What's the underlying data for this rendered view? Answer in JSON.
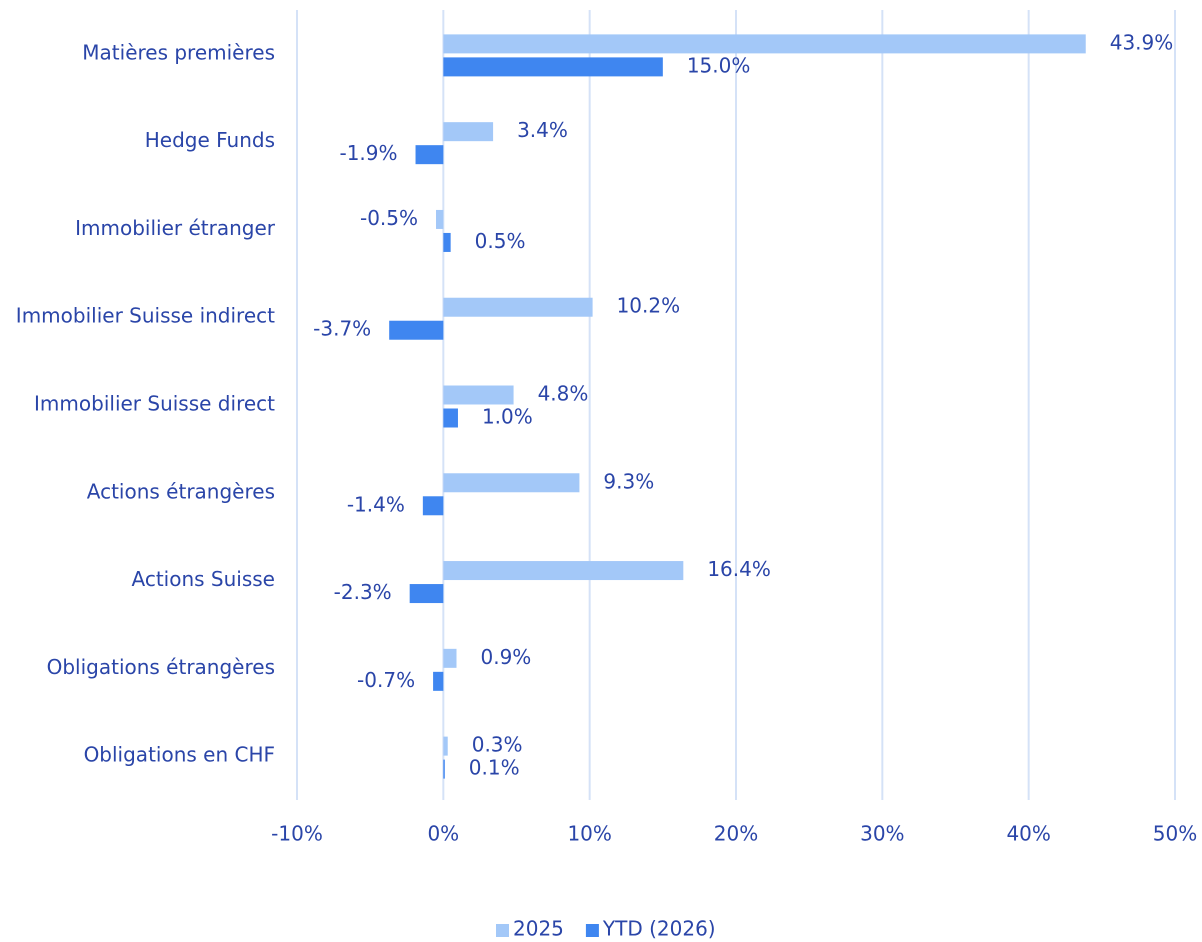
{
  "chart_data": {
    "type": "bar",
    "orientation": "horizontal",
    "categories": [
      "Matières premières",
      "Hedge Funds",
      "Immobilier étranger",
      "Immobilier Suisse indirect",
      "Immobilier Suisse direct",
      "Actions étrangères",
      "Actions Suisse",
      "Obligations étrangères",
      "Obligations en CHF"
    ],
    "series": [
      {
        "name": "2025",
        "color": "#a3c8f8",
        "values": [
          43.9,
          3.4,
          -0.5,
          10.2,
          4.8,
          9.3,
          16.4,
          0.9,
          0.3
        ],
        "value_labels": [
          "43.9%",
          "3.4%",
          "-0.5%",
          "10.2%",
          "4.8%",
          "9.3%",
          "16.4%",
          "0.9%",
          "0.3%"
        ]
      },
      {
        "name": "YTD (2026)",
        "color": "#3f86f0",
        "values": [
          15.0,
          -1.9,
          0.5,
          -3.7,
          1.0,
          -1.4,
          -2.3,
          -0.7,
          0.1
        ],
        "value_labels": [
          "15.0%",
          "-1.9%",
          "0.5%",
          "-3.7%",
          "1.0%",
          "-1.4%",
          "-2.3%",
          "-0.7%",
          "0.1%"
        ]
      }
    ],
    "xlim": [
      -10,
      50
    ],
    "xticks": [
      {
        "value": -10,
        "label": "-10%"
      },
      {
        "value": 0,
        "label": "0%"
      },
      {
        "value": 10,
        "label": "10%"
      },
      {
        "value": 20,
        "label": "20%"
      },
      {
        "value": 30,
        "label": "30%"
      },
      {
        "value": 40,
        "label": "40%"
      },
      {
        "value": 50,
        "label": "50%"
      }
    ],
    "grid": true,
    "legend": "bottom"
  }
}
